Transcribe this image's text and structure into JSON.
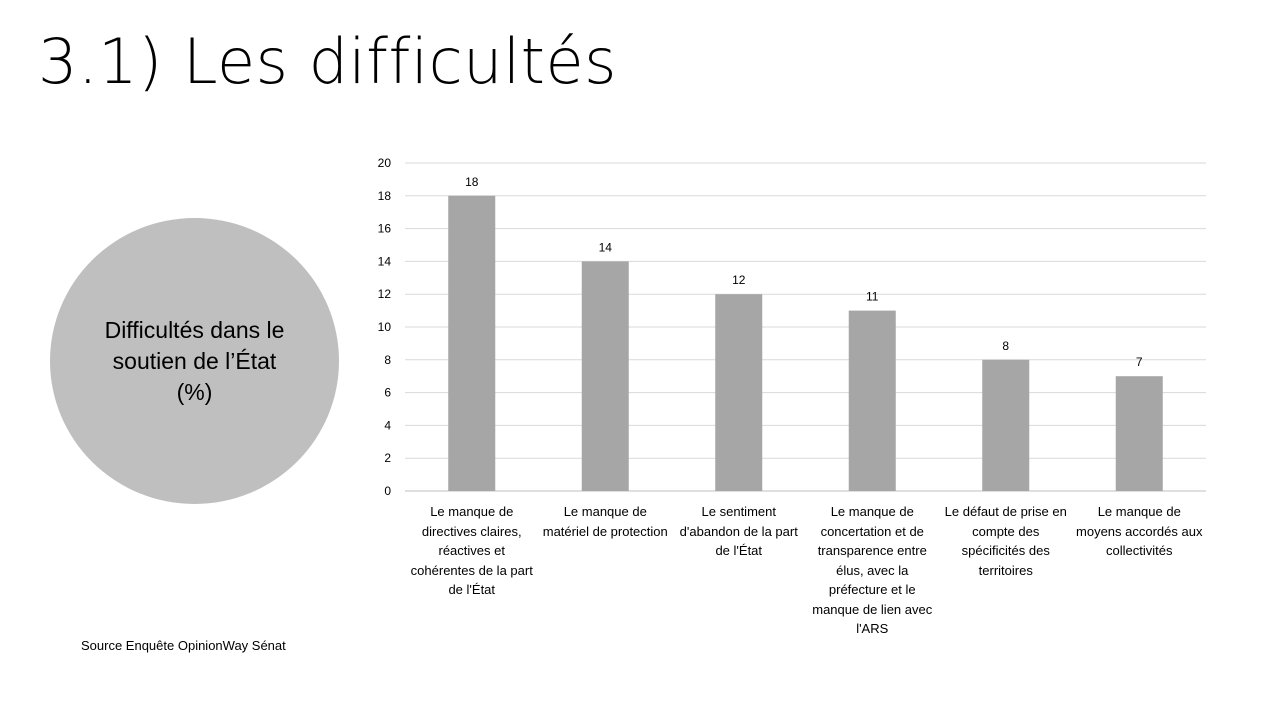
{
  "slide": {
    "title": "3.1) Les difficultés",
    "circle_label": "Difficultés dans le soutien de l’État (%)",
    "source": "Source Enquête OpinionWay Sénat"
  },
  "colors": {
    "bar": "#a6a6a6",
    "circle": "#bfbfbf",
    "grid": "#d9d9d9"
  },
  "chart_data": {
    "type": "bar",
    "categories": [
      "Le manque de directives claires, réactives et cohérentes de la part de l'État",
      "Le manque de matériel de protection",
      "Le sentiment d'abandon de la part de l'État",
      "Le manque de concertation et de transparence entre élus, avec la préfecture et le manque de lien avec l'ARS",
      "Le défaut de prise en compte des spécificités des territoires",
      "Le manque de moyens accordés aux collectivités"
    ],
    "values": [
      18,
      14,
      12,
      11,
      8,
      7
    ],
    "ylim": [
      0,
      20
    ],
    "yticks": [
      "0",
      "2",
      "4",
      "6",
      "8",
      "10",
      "12",
      "14",
      "16",
      "18",
      "20"
    ],
    "grid": true,
    "legend": "none"
  }
}
